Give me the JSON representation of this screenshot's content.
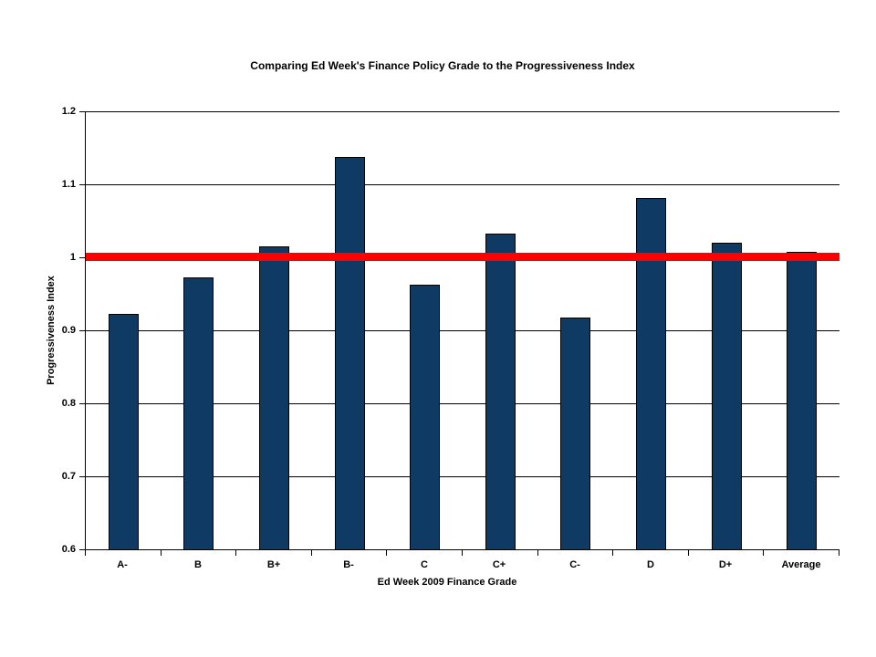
{
  "chart_data": {
    "type": "bar",
    "title": "Comparing Ed Week's Finance Policy Grade to the Progressiveness Index",
    "xlabel": "Ed Week 2009 Finance Grade",
    "ylabel": "Progressiveness Index",
    "categories": [
      "A-",
      "B",
      "B+",
      "B-",
      "C",
      "C+",
      "C-",
      "D",
      "D+",
      "Average"
    ],
    "values": [
      0.923,
      0.972,
      1.015,
      1.137,
      0.963,
      1.032,
      0.918,
      1.081,
      1.02,
      1.007
    ],
    "ylim": [
      0.6,
      1.2
    ],
    "ytick_step": 0.1,
    "ytick_labels": [
      "0.6",
      "0.7",
      "0.8",
      "0.9",
      "1",
      "1.1",
      "1.2"
    ],
    "reference_line": {
      "value": 1.0,
      "color": "#FF0000",
      "thickness_px": 9
    },
    "bar_color": "#0E3A64",
    "bar_border_color": "#000000",
    "gridlines": true,
    "gridline_color": "#000000",
    "legend": "none",
    "plot_background": "#FFFFFF"
  }
}
